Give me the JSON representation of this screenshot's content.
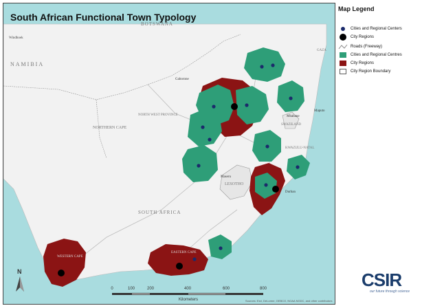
{
  "title": "South African Functional Town Typology",
  "legend": {
    "title": "Map Legend",
    "items": [
      {
        "label": "Cities and Regional Centers",
        "symbol": "navy-dot-icon"
      },
      {
        "label": "City Regions",
        "symbol": "black-dot-icon"
      },
      {
        "label": "Roads (Freeway)",
        "symbol": "road-line-icon"
      },
      {
        "label": "Cities and Regional Centres",
        "symbol": "green-patch-icon"
      },
      {
        "label": "City Regions",
        "symbol": "red-patch-icon"
      },
      {
        "label": "City Region Boundary",
        "symbol": "boundary-box-icon"
      }
    ]
  },
  "colors": {
    "sea": "#9fd8dc",
    "land": "#f4f4f4",
    "cities_regional_centres": "#2e9e78",
    "city_regions": "#8b1414",
    "city_marker": "#1b2a6b"
  },
  "map_labels": {
    "botswana": "BOTSWANA",
    "namibia": "NAMIBIA",
    "gaborone": "Gaborone",
    "northern_cape": "NORTHERN CAPE",
    "north_west": "NORTH WEST PROVINCE",
    "mbabane": "Mbabane",
    "maputo": "Maputo",
    "swaziland": "SWAZILAND",
    "lesotho": "LESOTHO",
    "maseru": "Maseru",
    "south_africa": "SOUTH AFRICA",
    "durban": "Durban",
    "western_cape": "WESTERN CAPE",
    "eastern_cape": "EASTERN CAPE",
    "windhoek": "Windhoek",
    "gaza": "GAZA",
    "kwazulu": "KWAZULU-NATAL"
  },
  "scale": {
    "ticks": [
      "0",
      "100",
      "200",
      "400",
      "600",
      "800"
    ],
    "unit": "Kilometers"
  },
  "north": "N",
  "credit": "Sources: Esri, DeLorme, GEBCO, NOAA NGDC, and other contributors",
  "logo": {
    "name": "CSIR",
    "tagline": "our future through science"
  }
}
